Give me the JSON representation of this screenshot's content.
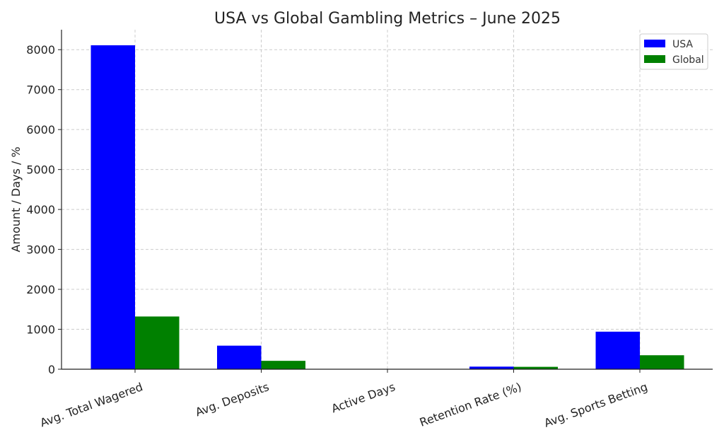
{
  "chart_data": {
    "type": "bar",
    "title": "USA vs Global Gambling Metrics – June 2025",
    "xlabel": "",
    "ylabel": "Amount / Days / %",
    "categories": [
      "Avg. Total Wagered",
      "Avg. Deposits",
      "Active Days",
      "Retention Rate (%)",
      "Avg. Sports Betting"
    ],
    "series": [
      {
        "name": "USA",
        "color": "#0000ff",
        "values": [
          8110,
          590,
          9,
          65,
          940
        ]
      },
      {
        "name": "Global",
        "color": "#008000",
        "values": [
          1320,
          210,
          7,
          60,
          350
        ]
      }
    ],
    "ylim": [
      0,
      8500
    ],
    "yticks": [
      0,
      1000,
      2000,
      3000,
      4000,
      5000,
      6000,
      7000,
      8000
    ],
    "grid": true,
    "legend_position": "top-right"
  }
}
